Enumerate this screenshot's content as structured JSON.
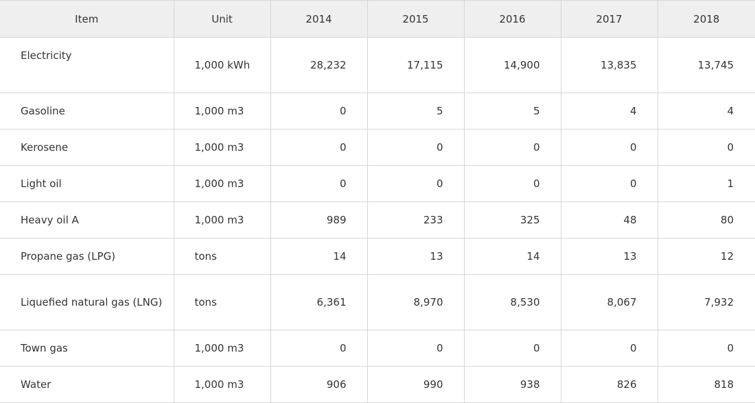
{
  "table": {
    "headers": [
      "Item",
      "Unit",
      "2014",
      "2015",
      "2016",
      "2017",
      "2018"
    ],
    "rows": [
      {
        "item": "Electricity",
        "unit": "1,000 kWh",
        "values": [
          "28,232",
          "17,115",
          "14,900",
          "13,835",
          "13,745"
        ]
      },
      {
        "item": "Gasoline",
        "unit": "1,000 m3",
        "values": [
          "0",
          "5",
          "5",
          "4",
          "4"
        ]
      },
      {
        "item": "Kerosene",
        "unit": "1,000 m3",
        "values": [
          "0",
          "0",
          "0",
          "0",
          "0"
        ]
      },
      {
        "item": "Light oil",
        "unit": "1,000 m3",
        "values": [
          "0",
          "0",
          "0",
          "0",
          "1"
        ]
      },
      {
        "item": "Heavy oil A",
        "unit": "1,000 m3",
        "values": [
          "989",
          "233",
          "325",
          "48",
          "80"
        ]
      },
      {
        "item": "Propane gas (LPG)",
        "unit": "tons",
        "values": [
          "14",
          "13",
          "14",
          "13",
          "12"
        ]
      },
      {
        "item": "Liquefied natural gas (LNG)",
        "unit": "tons",
        "values": [
          "6,361",
          "8,970",
          "8,530",
          "8,067",
          "7,932"
        ]
      },
      {
        "item": "Town gas",
        "unit": "1,000 m3",
        "values": [
          "0",
          "0",
          "0",
          "0",
          "0"
        ]
      },
      {
        "item": "Water",
        "unit": "1,000 m3",
        "values": [
          "906",
          "990",
          "938",
          "826",
          "818"
        ]
      }
    ]
  }
}
